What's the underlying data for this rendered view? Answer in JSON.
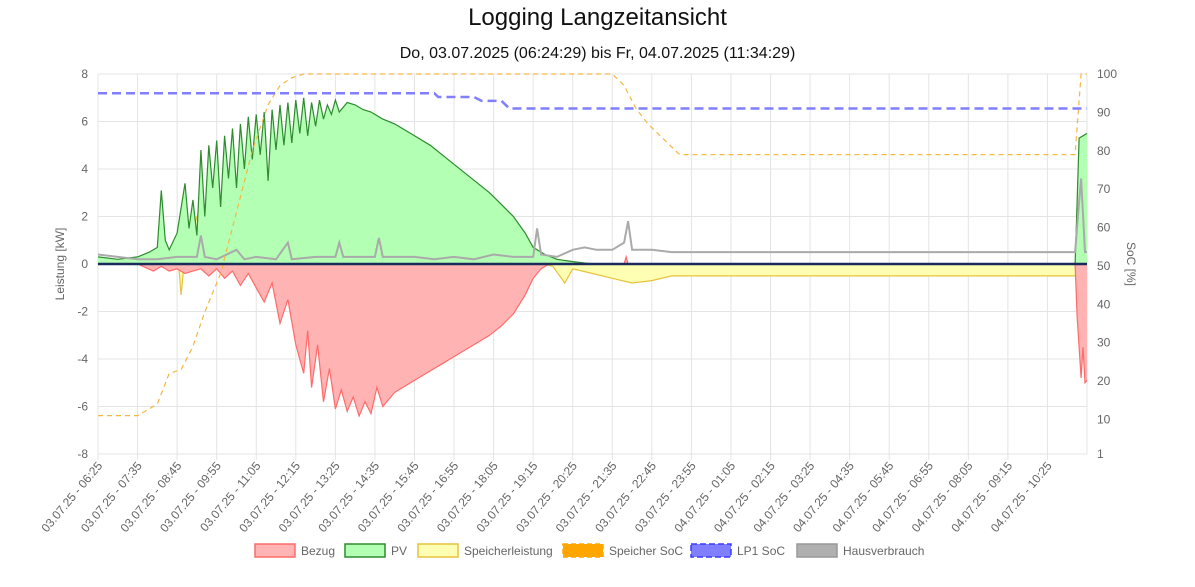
{
  "title": "Logging Langzeitansicht",
  "subtitle": "Do, 03.07.2025 (06:24:29) bis Fr, 04.07.2025 (11:34:29)",
  "chart_data": {
    "type": "line",
    "yaxis_left": {
      "label": "Leistung [kW]",
      "range": [
        -8,
        8
      ],
      "ticks": [
        -8,
        -6,
        -4,
        -2,
        0,
        2,
        4,
        6,
        8
      ]
    },
    "yaxis_right": {
      "label": "SoC [%]",
      "range": [
        1,
        100
      ],
      "ticks": [
        1,
        10,
        20,
        30,
        40,
        50,
        60,
        70,
        80,
        90,
        100
      ]
    },
    "x_ticks": [
      "03.07.25 - 06:25",
      "03.07.25 - 07:35",
      "03.07.25 - 08:45",
      "03.07.25 - 09:55",
      "03.07.25 - 11:05",
      "03.07.25 - 12:15",
      "03.07.25 - 13:25",
      "03.07.25 - 14:35",
      "03.07.25 - 15:45",
      "03.07.25 - 16:55",
      "03.07.25 - 18:05",
      "03.07.25 - 19:15",
      "03.07.25 - 20:25",
      "03.07.25 - 21:35",
      "03.07.25 - 22:45",
      "03.07.25 - 23:55",
      "04.07.25 - 01:05",
      "04.07.25 - 02:15",
      "04.07.25 - 03:25",
      "04.07.25 - 04:35",
      "04.07.25 - 05:45",
      "04.07.25 - 06:55",
      "04.07.25 - 08:05",
      "04.07.25 - 09:15",
      "04.07.25 - 10:25"
    ],
    "grid": true,
    "legend_position": "bottom",
    "series": [
      {
        "name": "Bezug",
        "axis": "left",
        "style": "area",
        "color": "#ff6b6b",
        "fill": "#ffb3b3",
        "points": [
          [
            0,
            0.1
          ],
          [
            0.5,
            0
          ],
          [
            1,
            0
          ],
          [
            1.4,
            -0.3
          ],
          [
            1.6,
            -0.1
          ],
          [
            1.8,
            -0.3
          ],
          [
            2,
            -0.2
          ],
          [
            2.2,
            -0.4
          ],
          [
            2.4,
            -0.3
          ],
          [
            2.6,
            -0.2
          ],
          [
            2.8,
            -0.5
          ],
          [
            3,
            -0.2
          ],
          [
            3.2,
            -0.6
          ],
          [
            3.4,
            -0.3
          ],
          [
            3.6,
            -0.9
          ],
          [
            3.8,
            -0.4
          ],
          [
            4,
            -1.0
          ],
          [
            4.2,
            -1.6
          ],
          [
            4.4,
            -0.8
          ],
          [
            4.6,
            -2.5
          ],
          [
            4.8,
            -1.5
          ],
          [
            5.0,
            -3.4
          ],
          [
            5.2,
            -4.6
          ],
          [
            5.3,
            -2.8
          ],
          [
            5.4,
            -5.2
          ],
          [
            5.55,
            -3.4
          ],
          [
            5.7,
            -5.8
          ],
          [
            5.85,
            -4.4
          ],
          [
            6.0,
            -6.1
          ],
          [
            6.15,
            -5.3
          ],
          [
            6.3,
            -6.2
          ],
          [
            6.45,
            -5.6
          ],
          [
            6.6,
            -6.4
          ],
          [
            6.75,
            -5.8
          ],
          [
            6.9,
            -6.3
          ],
          [
            7.05,
            -5.2
          ],
          [
            7.2,
            -6.0
          ],
          [
            7.35,
            -5.7
          ],
          [
            7.5,
            -5.4
          ],
          [
            7.8,
            -5.1
          ],
          [
            8.1,
            -4.8
          ],
          [
            8.4,
            -4.5
          ],
          [
            8.7,
            -4.2
          ],
          [
            9.0,
            -3.9
          ],
          [
            9.3,
            -3.6
          ],
          [
            9.6,
            -3.3
          ],
          [
            9.9,
            -3.0
          ],
          [
            10.2,
            -2.6
          ],
          [
            10.5,
            -2.1
          ],
          [
            10.8,
            -1.3
          ],
          [
            11.0,
            -0.6
          ],
          [
            11.2,
            -0.2
          ],
          [
            11.4,
            0
          ],
          [
            13.3,
            0
          ],
          [
            13.35,
            0.3
          ],
          [
            13.4,
            0
          ],
          [
            14.3,
            0
          ],
          [
            24.7,
            0
          ],
          [
            24.75,
            -2.2
          ],
          [
            24.85,
            -4.8
          ],
          [
            24.9,
            -3.5
          ],
          [
            24.95,
            -5.0
          ],
          [
            25.0,
            -4.9
          ]
        ]
      },
      {
        "name": "PV",
        "axis": "left",
        "style": "area",
        "color": "#2e8b2e",
        "fill": "#b3ffb3",
        "points": [
          [
            0,
            0.3
          ],
          [
            0.5,
            0.2
          ],
          [
            1,
            0.3
          ],
          [
            1.3,
            0.5
          ],
          [
            1.5,
            0.7
          ],
          [
            1.6,
            3.1
          ],
          [
            1.7,
            1.0
          ],
          [
            1.8,
            0.6
          ],
          [
            2.0,
            1.3
          ],
          [
            2.2,
            3.4
          ],
          [
            2.3,
            1.5
          ],
          [
            2.4,
            2.7
          ],
          [
            2.5,
            1.2
          ],
          [
            2.6,
            4.8
          ],
          [
            2.7,
            2.0
          ],
          [
            2.8,
            5.0
          ],
          [
            2.9,
            3.2
          ],
          [
            3.0,
            5.2
          ],
          [
            3.1,
            2.4
          ],
          [
            3.2,
            5.4
          ],
          [
            3.3,
            3.6
          ],
          [
            3.4,
            5.7
          ],
          [
            3.5,
            3.2
          ],
          [
            3.6,
            5.9
          ],
          [
            3.7,
            4.0
          ],
          [
            3.8,
            6.2
          ],
          [
            3.9,
            4.4
          ],
          [
            4.0,
            6.3
          ],
          [
            4.1,
            4.6
          ],
          [
            4.2,
            6.4
          ],
          [
            4.3,
            3.5
          ],
          [
            4.4,
            6.5
          ],
          [
            4.5,
            4.8
          ],
          [
            4.6,
            6.7
          ],
          [
            4.7,
            5.0
          ],
          [
            4.8,
            6.8
          ],
          [
            4.9,
            5.1
          ],
          [
            5.0,
            6.9
          ],
          [
            5.1,
            5.5
          ],
          [
            5.2,
            7.0
          ],
          [
            5.3,
            5.4
          ],
          [
            5.4,
            6.8
          ],
          [
            5.5,
            5.8
          ],
          [
            5.6,
            6.9
          ],
          [
            5.7,
            6.1
          ],
          [
            5.8,
            6.7
          ],
          [
            5.9,
            6.3
          ],
          [
            6.0,
            6.9
          ],
          [
            6.1,
            6.4
          ],
          [
            6.3,
            6.8
          ],
          [
            6.5,
            6.7
          ],
          [
            6.7,
            6.5
          ],
          [
            6.9,
            6.4
          ],
          [
            7.0,
            6.3
          ],
          [
            7.2,
            6.1
          ],
          [
            7.5,
            5.9
          ],
          [
            7.8,
            5.6
          ],
          [
            8.1,
            5.3
          ],
          [
            8.4,
            5.0
          ],
          [
            8.7,
            4.6
          ],
          [
            9.0,
            4.2
          ],
          [
            9.3,
            3.8
          ],
          [
            9.6,
            3.4
          ],
          [
            9.9,
            3.0
          ],
          [
            10.2,
            2.5
          ],
          [
            10.5,
            2.0
          ],
          [
            10.8,
            1.3
          ],
          [
            11.0,
            0.7
          ],
          [
            11.3,
            0.4
          ],
          [
            11.6,
            0.2
          ],
          [
            12.0,
            0.1
          ],
          [
            12.5,
            0
          ],
          [
            24.7,
            0
          ],
          [
            24.75,
            2.6
          ],
          [
            24.8,
            5.3
          ],
          [
            24.9,
            5.4
          ],
          [
            25.0,
            5.5
          ]
        ]
      },
      {
        "name": "Speicherleistung",
        "axis": "left",
        "style": "area",
        "color": "#e6c23d",
        "fill": "#ffffb3",
        "points": [
          [
            0,
            0
          ],
          [
            1.5,
            0.2
          ],
          [
            2.0,
            0.8
          ],
          [
            2.1,
            -1.3
          ],
          [
            2.2,
            0.4
          ],
          [
            2.6,
            2.5
          ],
          [
            2.7,
            0.5
          ],
          [
            3.0,
            0.9
          ],
          [
            3.1,
            -0.1
          ],
          [
            3.4,
            1.1
          ],
          [
            3.6,
            -0.4
          ],
          [
            3.9,
            0.6
          ],
          [
            4.2,
            0.9
          ],
          [
            4.5,
            1.2
          ],
          [
            4.8,
            0.5
          ],
          [
            5.0,
            0.8
          ],
          [
            5.4,
            0.7
          ],
          [
            6.0,
            0.2
          ],
          [
            7.0,
            0.1
          ],
          [
            8.0,
            0.2
          ],
          [
            9.0,
            0.2
          ],
          [
            9.2,
            0.7
          ],
          [
            9.3,
            0.2
          ],
          [
            10.0,
            0.1
          ],
          [
            11.0,
            0.1
          ],
          [
            11.5,
            -0.1
          ],
          [
            11.8,
            -0.8
          ],
          [
            12.0,
            -0.2
          ],
          [
            12.5,
            -0.4
          ],
          [
            13.0,
            -0.6
          ],
          [
            13.5,
            -0.8
          ],
          [
            14.0,
            -0.7
          ],
          [
            14.5,
            -0.5
          ],
          [
            15.0,
            -0.5
          ],
          [
            20,
            -0.5
          ],
          [
            24.7,
            -0.5
          ],
          [
            24.8,
            0
          ],
          [
            25.0,
            0
          ]
        ]
      },
      {
        "name": "Speicher SoC",
        "axis": "right",
        "style": "dashed-line",
        "color": "#f5b642",
        "points": [
          [
            0,
            11
          ],
          [
            1,
            11
          ],
          [
            1.5,
            14
          ],
          [
            1.8,
            22
          ],
          [
            2.1,
            23
          ],
          [
            2.4,
            29
          ],
          [
            2.7,
            38
          ],
          [
            2.9,
            43
          ],
          [
            3.1,
            48
          ],
          [
            3.3,
            56
          ],
          [
            3.5,
            64
          ],
          [
            3.7,
            72
          ],
          [
            3.9,
            80
          ],
          [
            4.1,
            86
          ],
          [
            4.3,
            92
          ],
          [
            4.6,
            97
          ],
          [
            4.9,
            99
          ],
          [
            5.2,
            100
          ],
          [
            13.0,
            100
          ],
          [
            13.3,
            97
          ],
          [
            13.6,
            91
          ],
          [
            13.9,
            87
          ],
          [
            14.2,
            84
          ],
          [
            14.5,
            81
          ],
          [
            14.7,
            79
          ],
          [
            24.7,
            79
          ],
          [
            24.85,
            100
          ],
          [
            25.0,
            100
          ]
        ]
      },
      {
        "name": "LP1 SoC",
        "axis": "right",
        "style": "dashed-line",
        "color": "#7f7fff",
        "points": [
          [
            0,
            95
          ],
          [
            8.5,
            95
          ],
          [
            8.6,
            94
          ],
          [
            9.5,
            94
          ],
          [
            9.7,
            93
          ],
          [
            10.2,
            93
          ],
          [
            10.4,
            91
          ],
          [
            25.0,
            91
          ]
        ]
      },
      {
        "name": "Hausverbrauch",
        "axis": "left",
        "style": "line",
        "color": "#aaaaaa",
        "points": [
          [
            0,
            0.4
          ],
          [
            0.5,
            0.3
          ],
          [
            1,
            0.2
          ],
          [
            1.5,
            0.2
          ],
          [
            2.0,
            0.3
          ],
          [
            2.5,
            0.3
          ],
          [
            2.6,
            1.2
          ],
          [
            2.7,
            0.3
          ],
          [
            3.0,
            0.2
          ],
          [
            3.5,
            0.6
          ],
          [
            3.7,
            0.2
          ],
          [
            4.0,
            0.3
          ],
          [
            4.5,
            0.2
          ],
          [
            4.8,
            0.9
          ],
          [
            4.9,
            0.2
          ],
          [
            5.5,
            0.3
          ],
          [
            6.0,
            0.3
          ],
          [
            6.1,
            0.9
          ],
          [
            6.2,
            0.3
          ],
          [
            7.0,
            0.3
          ],
          [
            7.1,
            1.1
          ],
          [
            7.2,
            0.3
          ],
          [
            8.0,
            0.3
          ],
          [
            8.5,
            0.2
          ],
          [
            9.0,
            0.3
          ],
          [
            9.5,
            0.2
          ],
          [
            10.0,
            0.4
          ],
          [
            10.5,
            0.3
          ],
          [
            11.0,
            0.3
          ],
          [
            11.1,
            1.5
          ],
          [
            11.2,
            0.4
          ],
          [
            11.6,
            0.3
          ],
          [
            12.0,
            0.6
          ],
          [
            12.3,
            0.7
          ],
          [
            12.6,
            0.6
          ],
          [
            13.0,
            0.6
          ],
          [
            13.3,
            0.9
          ],
          [
            13.4,
            1.8
          ],
          [
            13.5,
            0.6
          ],
          [
            14.0,
            0.6
          ],
          [
            14.5,
            0.5
          ],
          [
            15.0,
            0.5
          ],
          [
            20,
            0.5
          ],
          [
            24.7,
            0.5
          ],
          [
            24.8,
            2.6
          ],
          [
            24.85,
            3.6
          ],
          [
            24.95,
            0.5
          ],
          [
            25.0,
            0.5
          ]
        ]
      }
    ]
  }
}
